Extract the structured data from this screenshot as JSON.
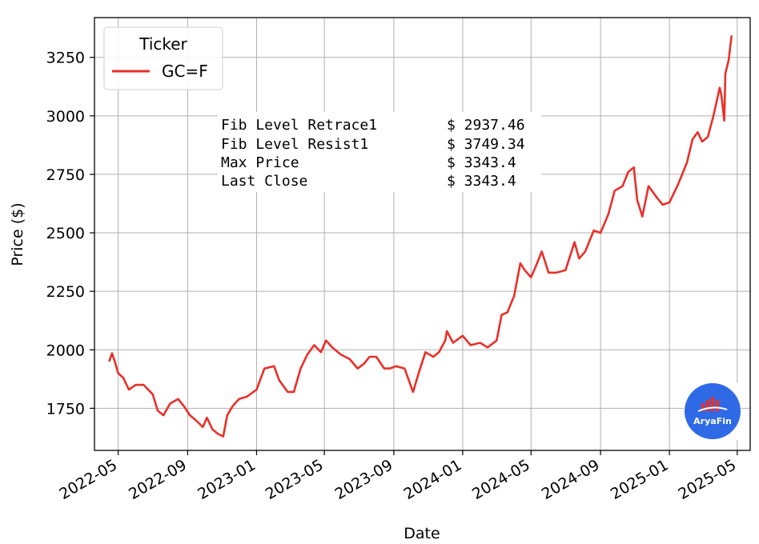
{
  "chart_data": {
    "type": "line",
    "title": "",
    "xlabel": "Date",
    "ylabel": "Price ($)",
    "xlim": [
      "2022-03-20",
      "2025-05-24"
    ],
    "ylim": [
      1570,
      3420
    ],
    "grid": true,
    "x_ticks": [
      "2022-05",
      "2022-09",
      "2023-01",
      "2023-05",
      "2023-09",
      "2024-01",
      "2024-05",
      "2024-09",
      "2025-01",
      "2025-05"
    ],
    "y_ticks": [
      1750,
      2000,
      2250,
      2500,
      2750,
      3000,
      3250
    ],
    "legend": {
      "title": "Ticker",
      "placement": "top-left"
    },
    "series": [
      {
        "name": "GC=F",
        "color": "#e8302a",
        "x": [
          "2022-04-15",
          "2022-04-20",
          "2022-04-25",
          "2022-05-01",
          "2022-05-10",
          "2022-05-20",
          "2022-06-01",
          "2022-06-15",
          "2022-07-01",
          "2022-07-10",
          "2022-07-20",
          "2022-08-01",
          "2022-08-15",
          "2022-08-25",
          "2022-09-05",
          "2022-09-15",
          "2022-09-28",
          "2022-10-05",
          "2022-10-15",
          "2022-10-25",
          "2022-11-03",
          "2022-11-10",
          "2022-11-20",
          "2022-12-01",
          "2022-12-15",
          "2023-01-01",
          "2023-01-15",
          "2023-02-01",
          "2023-02-10",
          "2023-02-25",
          "2023-03-08",
          "2023-03-20",
          "2023-04-01",
          "2023-04-13",
          "2023-04-25",
          "2023-05-04",
          "2023-05-15",
          "2023-05-30",
          "2023-06-15",
          "2023-06-29",
          "2023-07-10",
          "2023-07-20",
          "2023-08-01",
          "2023-08-15",
          "2023-08-25",
          "2023-09-05",
          "2023-09-20",
          "2023-10-05",
          "2023-10-15",
          "2023-10-27",
          "2023-11-10",
          "2023-11-20",
          "2023-12-01",
          "2023-12-04",
          "2023-12-15",
          "2024-01-01",
          "2024-01-15",
          "2024-02-01",
          "2024-02-14",
          "2024-03-01",
          "2024-03-10",
          "2024-03-20",
          "2024-04-01",
          "2024-04-12",
          "2024-04-20",
          "2024-05-01",
          "2024-05-10",
          "2024-05-20",
          "2024-06-01",
          "2024-06-15",
          "2024-07-01",
          "2024-07-17",
          "2024-07-25",
          "2024-08-05",
          "2024-08-20",
          "2024-09-01",
          "2024-09-15",
          "2024-09-26",
          "2024-10-10",
          "2024-10-20",
          "2024-10-30",
          "2024-11-05",
          "2024-11-14",
          "2024-11-25",
          "2024-12-10",
          "2024-12-20",
          "2025-01-01",
          "2025-01-15",
          "2025-02-01",
          "2025-02-11",
          "2025-02-20",
          "2025-02-28",
          "2025-03-10",
          "2025-03-20",
          "2025-03-31",
          "2025-04-03",
          "2025-04-08",
          "2025-04-10",
          "2025-04-16",
          "2025-04-21"
        ],
        "y": [
          1950,
          1985,
          1950,
          1900,
          1880,
          1830,
          1850,
          1850,
          1810,
          1740,
          1720,
          1770,
          1790,
          1760,
          1720,
          1700,
          1670,
          1710,
          1660,
          1640,
          1630,
          1720,
          1760,
          1790,
          1800,
          1830,
          1920,
          1930,
          1870,
          1820,
          1820,
          1920,
          1980,
          2020,
          1990,
          2040,
          2010,
          1980,
          1960,
          1920,
          1940,
          1970,
          1970,
          1920,
          1920,
          1930,
          1920,
          1820,
          1900,
          1990,
          1970,
          1990,
          2040,
          2080,
          2030,
          2060,
          2020,
          2030,
          2010,
          2040,
          2150,
          2160,
          2230,
          2370,
          2340,
          2310,
          2360,
          2420,
          2330,
          2330,
          2340,
          2460,
          2390,
          2420,
          2510,
          2500,
          2580,
          2680,
          2700,
          2760,
          2780,
          2640,
          2570,
          2700,
          2650,
          2620,
          2630,
          2700,
          2800,
          2900,
          2930,
          2890,
          2910,
          3000,
          3120,
          3090,
          2980,
          3180,
          3240,
          3343.4
        ]
      }
    ],
    "annotations": [
      {
        "label": "Fib Level Retrace1",
        "value": "$ 2937.46"
      },
      {
        "label": "Fib Level Resist1",
        "value": "$ 3749.34"
      },
      {
        "label": "Max Price",
        "value": "$ 3343.4"
      },
      {
        "label": "Last Close",
        "value": "$ 3343.4"
      }
    ]
  },
  "logo": {
    "text": "AryaFin",
    "color": "#2f6ae6"
  }
}
